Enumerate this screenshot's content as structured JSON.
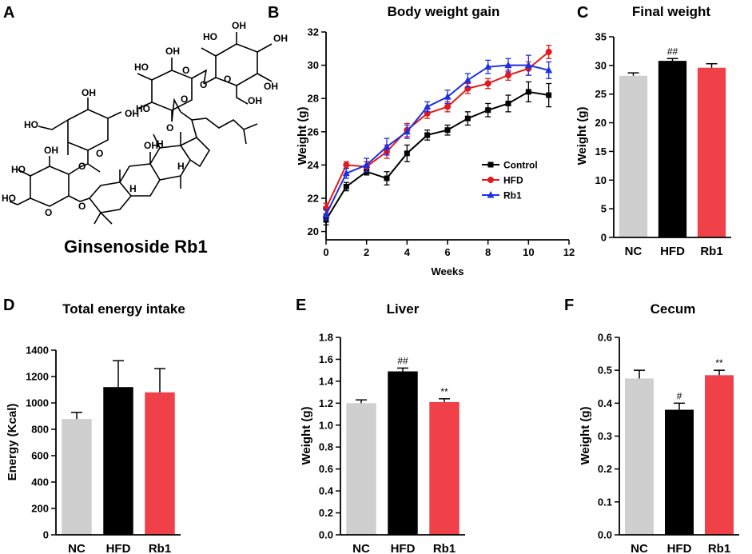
{
  "panel_letters": [
    "A",
    "B",
    "C",
    "D",
    "E",
    "F"
  ],
  "molecule": {
    "name": "Ginsenoside Rb1",
    "atom_labels": [
      "HO",
      "OH",
      "O",
      "HO",
      "O",
      "OH",
      "OH",
      "O",
      "HO",
      "O",
      "HO",
      "OH",
      "O",
      "OH",
      "O",
      "HO",
      "O",
      "HO",
      "OH",
      "OH",
      "H",
      "H",
      "H",
      "O",
      "HO"
    ]
  },
  "colors": {
    "nc": "#cfcfcf",
    "hfd": "#000000",
    "rb1": "#f04048",
    "control_line": "#000000",
    "hfd_line": "#e31a1c",
    "rb1_line": "#1f2fe0"
  },
  "chart_data": [
    {
      "id": "B",
      "type": "line",
      "title": "Body weight gain",
      "xlabel": "Weeks",
      "ylabel": "Weight (g)",
      "xlim": [
        0,
        12
      ],
      "ylim": [
        19.5,
        32
      ],
      "xticks": [
        "0",
        "2",
        "4",
        "6",
        "8",
        "10",
        "12"
      ],
      "yticks": [
        "20",
        "22",
        "24",
        "26",
        "28",
        "30",
        "32"
      ],
      "legend": [
        "Control",
        "HFD",
        "Rb1"
      ],
      "x": [
        0,
        1,
        2,
        3,
        4,
        5,
        6,
        7,
        8,
        9,
        10,
        11
      ],
      "series": [
        {
          "name": "Control",
          "marker": "square",
          "values": [
            20.7,
            22.7,
            23.6,
            23.2,
            24.7,
            25.8,
            26.1,
            26.8,
            27.3,
            27.7,
            28.4,
            28.2
          ],
          "errors": [
            0.3,
            0.25,
            0.2,
            0.4,
            0.5,
            0.3,
            0.3,
            0.4,
            0.4,
            0.5,
            0.6,
            0.7
          ]
        },
        {
          "name": "HFD",
          "marker": "circle",
          "values": [
            21.4,
            24.0,
            23.9,
            24.8,
            26.1,
            27.1,
            27.5,
            28.6,
            28.9,
            29.4,
            29.8,
            30.8
          ],
          "errors": [
            0.3,
            0.2,
            0.3,
            0.4,
            0.4,
            0.3,
            0.3,
            0.3,
            0.3,
            0.3,
            0.4,
            0.4
          ]
        },
        {
          "name": "Rb1",
          "marker": "triangle",
          "values": [
            21.0,
            23.5,
            24.0,
            25.1,
            26.0,
            27.5,
            28.1,
            29.1,
            29.9,
            30.0,
            30.0,
            29.7
          ],
          "errors": [
            0.3,
            0.3,
            0.4,
            0.5,
            0.4,
            0.3,
            0.4,
            0.4,
            0.4,
            0.4,
            0.6,
            0.5
          ]
        }
      ]
    },
    {
      "id": "C",
      "type": "bar",
      "title": "Final weight",
      "ylabel": "Weight (g)",
      "ylim": [
        0,
        35
      ],
      "yticks": [
        "0",
        "5",
        "10",
        "15",
        "20",
        "25",
        "30",
        "35"
      ],
      "categories": [
        "NC",
        "HFD",
        "Rb1"
      ],
      "values": [
        28.2,
        30.8,
        29.6
      ],
      "errors": [
        0.5,
        0.4,
        0.7
      ],
      "annotations": [
        "",
        "##",
        ""
      ]
    },
    {
      "id": "D",
      "type": "bar",
      "title": "Total energy intake",
      "ylabel": "Energy (Kcal)",
      "ylim": [
        0,
        1400
      ],
      "yticks": [
        "0",
        "200",
        "400",
        "600",
        "800",
        "1000",
        "1200",
        "1400"
      ],
      "categories": [
        "NC",
        "HFD",
        "Rb1"
      ],
      "values": [
        878,
        1120,
        1080
      ],
      "errors": [
        50,
        200,
        180
      ],
      "annotations": [
        "",
        "",
        ""
      ]
    },
    {
      "id": "E",
      "type": "bar",
      "title": "Liver",
      "ylabel": "Weight (g)",
      "ylim": [
        0,
        1.8
      ],
      "yticks": [
        "0.0",
        "0.2",
        "0.4",
        "0.6",
        "0.8",
        "1.0",
        "1.2",
        "1.4",
        "1.6",
        "1.8"
      ],
      "categories": [
        "NC",
        "HFD",
        "Rb1"
      ],
      "values": [
        1.2,
        1.49,
        1.21
      ],
      "errors": [
        0.03,
        0.03,
        0.03
      ],
      "annotations": [
        "",
        "##",
        "**"
      ]
    },
    {
      "id": "F",
      "type": "bar",
      "title": "Cecum",
      "ylabel": "Weight (g)",
      "ylim": [
        0,
        0.6
      ],
      "yticks": [
        "0.0",
        "0.1",
        "0.2",
        "0.3",
        "0.4",
        "0.5",
        "0.6"
      ],
      "categories": [
        "NC",
        "HFD",
        "Rb1"
      ],
      "values": [
        0.475,
        0.38,
        0.485
      ],
      "errors": [
        0.025,
        0.02,
        0.015
      ],
      "annotations": [
        "",
        "#",
        "**"
      ]
    }
  ]
}
